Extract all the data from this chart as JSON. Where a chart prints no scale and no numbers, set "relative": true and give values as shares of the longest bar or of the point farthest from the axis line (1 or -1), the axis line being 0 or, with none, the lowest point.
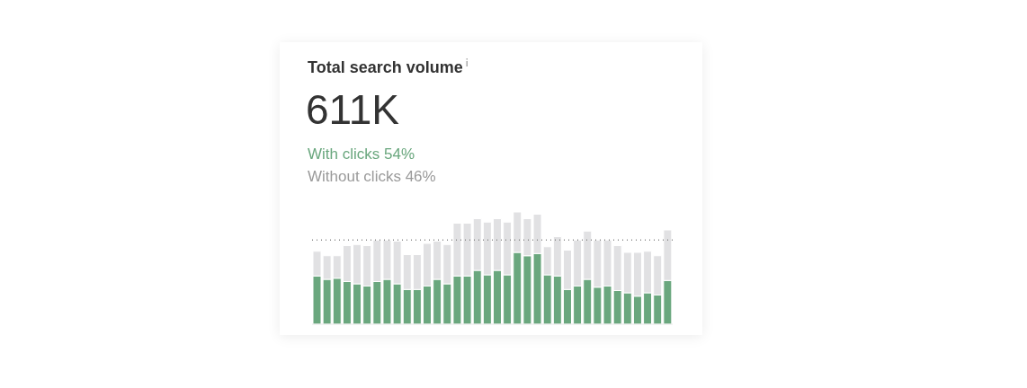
{
  "chart_data": {
    "type": "bar",
    "title": "Total search volume",
    "subtitle": "611K",
    "relative": true,
    "stacked": true,
    "legend": "top",
    "tick_labels": false,
    "grid": false,
    "categories": [
      null,
      null,
      null,
      null,
      null,
      null,
      null,
      null,
      null,
      null,
      null,
      null,
      null,
      null,
      null,
      null,
      null,
      null,
      null,
      null,
      null,
      null,
      null,
      null,
      null,
      null,
      null,
      null,
      null,
      null,
      null,
      null,
      null,
      null,
      null,
      null
    ],
    "series": [
      {
        "name": "With clicks 54%",
        "color": "#6aa77e",
        "values": [
          0.43,
          0.4,
          0.41,
          0.38,
          0.36,
          0.34,
          0.38,
          0.4,
          0.36,
          0.31,
          0.31,
          0.34,
          0.4,
          0.36,
          0.43,
          0.43,
          0.48,
          0.44,
          0.48,
          0.44,
          0.64,
          0.61,
          0.63,
          0.44,
          0.43,
          0.31,
          0.34,
          0.4,
          0.33,
          0.34,
          0.3,
          0.28,
          0.25,
          0.28,
          0.26,
          0.39
        ]
      },
      {
        "name": "Without clicks 46%",
        "color": "#e1e1e3",
        "values": [
          0.22,
          0.21,
          0.2,
          0.32,
          0.35,
          0.36,
          0.37,
          0.35,
          0.38,
          0.31,
          0.31,
          0.38,
          0.34,
          0.35,
          0.47,
          0.47,
          0.46,
          0.47,
          0.46,
          0.47,
          0.36,
          0.33,
          0.35,
          0.25,
          0.35,
          0.35,
          0.41,
          0.43,
          0.42,
          0.41,
          0.4,
          0.36,
          0.39,
          0.37,
          0.35,
          0.45
        ]
      }
    ],
    "ref_lines": [
      {
        "axis": "y",
        "value": 0.75,
        "color": "#8a8a8a",
        "line_style": "dotted"
      }
    ]
  }
}
